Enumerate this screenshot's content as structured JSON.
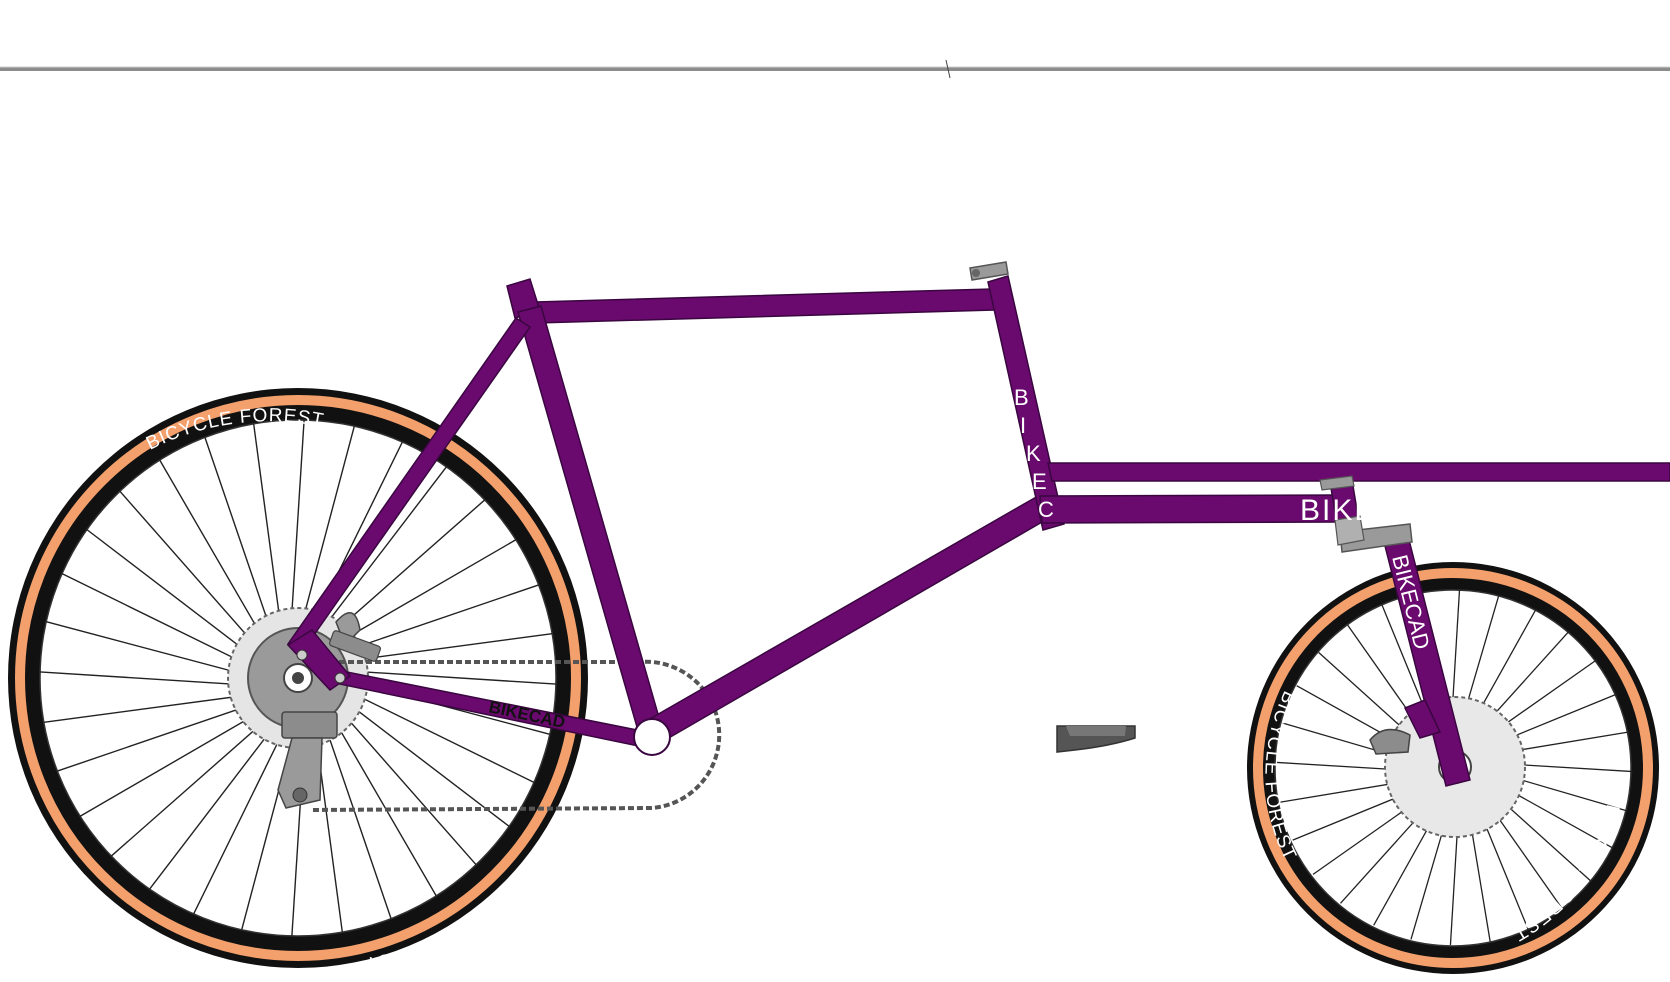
{
  "drawing": {
    "colors": {
      "frame": "#6a0a6e",
      "tire": "#111111",
      "tire_sidewall": "#f4a06c",
      "components": "#8c8c8c",
      "background": "#ffffff"
    }
  },
  "decals": {
    "seat_tube": "BIKEC",
    "chainstay": "BIKECAD",
    "fork": "BIKECAD",
    "head_tube": "BIKE",
    "rear_tire": "BICYCLE FOREST",
    "front_tire": "BICYCLE FOREST"
  }
}
